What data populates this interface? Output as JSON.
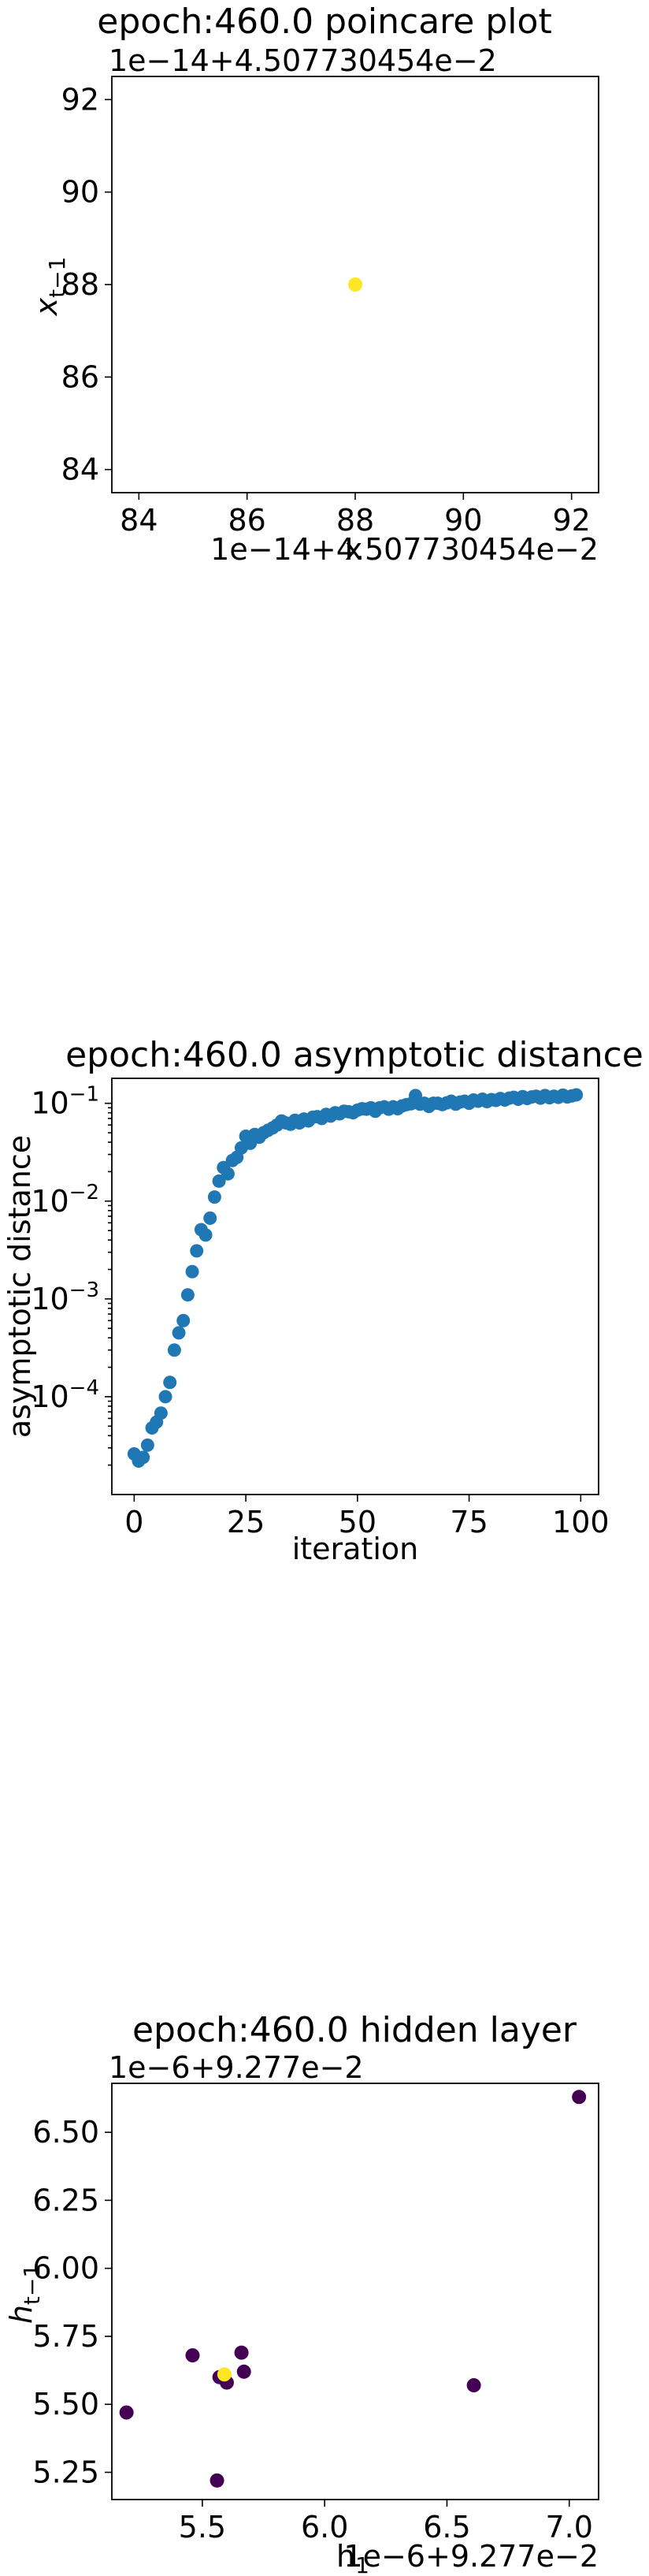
{
  "chart_data": [
    {
      "type": "scatter",
      "title": "epoch:460.0 poincare plot",
      "xlabel": "x",
      "ylabel": "x_{t-1}",
      "x_offset_label": "1e−14+4.507730454e−2",
      "y_offset_label": "1e−14+4.507730454e−2",
      "xlim": [
        83.5,
        92.5
      ],
      "ylim": [
        83.5,
        92.5
      ],
      "xticks": [
        "84",
        "86",
        "88",
        "90",
        "92"
      ],
      "yticks": [
        "84",
        "86",
        "88",
        "90",
        "92"
      ],
      "points": [
        {
          "x": 88.0,
          "y": 88.0,
          "color": "#fde725"
        }
      ]
    },
    {
      "type": "scatter",
      "title": "epoch:460.0 asymptotic distance",
      "xlabel": "iteration",
      "ylabel": "asymptotic distance",
      "yscale": "log",
      "xlim": [
        -5,
        104
      ],
      "ylim": [
        1e-05,
        0.18
      ],
      "xticks": [
        "0",
        "25",
        "50",
        "75",
        "100"
      ],
      "yticks": [
        "10^{-1}",
        "10^{-2}",
        "10^{-3}",
        "10^{-4}"
      ],
      "color": "#1f77b4",
      "x": [
        0,
        1,
        2,
        3,
        4,
        5,
        6,
        7,
        8,
        9,
        10,
        11,
        12,
        13,
        14,
        15,
        16,
        17,
        18,
        19,
        20,
        21,
        22,
        23,
        24,
        25,
        26,
        27,
        28,
        29,
        30,
        31,
        32,
        33,
        34,
        35,
        36,
        37,
        38,
        39,
        40,
        41,
        42,
        43,
        44,
        45,
        46,
        47,
        48,
        49,
        50,
        51,
        52,
        53,
        54,
        55,
        56,
        57,
        58,
        59,
        60,
        61,
        62,
        63,
        64,
        65,
        66,
        67,
        68,
        69,
        70,
        71,
        72,
        73,
        74,
        75,
        76,
        77,
        78,
        79,
        80,
        81,
        82,
        83,
        84,
        85,
        86,
        87,
        88,
        89,
        90,
        91,
        92,
        93,
        94,
        95,
        96,
        97,
        98,
        99
      ],
      "y": [
        2.6e-05,
        2.2e-05,
        2.4e-05,
        3.2e-05,
        4.8e-05,
        5.5e-05,
        6.8e-05,
        0.0001,
        0.00014,
        0.0003,
        0.00045,
        0.0006,
        0.0011,
        0.0019,
        0.0031,
        0.0051,
        0.0045,
        0.0067,
        0.011,
        0.016,
        0.022,
        0.019,
        0.026,
        0.028,
        0.035,
        0.046,
        0.039,
        0.048,
        0.045,
        0.05,
        0.053,
        0.056,
        0.06,
        0.066,
        0.063,
        0.061,
        0.067,
        0.063,
        0.069,
        0.066,
        0.072,
        0.073,
        0.07,
        0.077,
        0.074,
        0.08,
        0.078,
        0.083,
        0.082,
        0.08,
        0.085,
        0.088,
        0.087,
        0.09,
        0.083,
        0.09,
        0.092,
        0.087,
        0.092,
        0.088,
        0.094,
        0.097,
        0.099,
        0.12,
        0.098,
        0.1,
        0.093,
        0.1,
        0.1,
        0.097,
        0.101,
        0.105,
        0.098,
        0.103,
        0.105,
        0.1,
        0.108,
        0.105,
        0.11,
        0.104,
        0.109,
        0.107,
        0.112,
        0.108,
        0.113,
        0.115,
        0.11,
        0.117,
        0.112,
        0.116,
        0.118,
        0.113,
        0.12,
        0.114,
        0.118,
        0.115,
        0.121,
        0.116,
        0.119,
        0.122
      ]
    },
    {
      "type": "scatter",
      "title": "epoch:460.0 hidden layer",
      "xlabel": "h_1",
      "ylabel": "h_{t-1}",
      "x_offset_label": "1e−6+9.277e−2",
      "y_offset_label": "1e−6+9.277e−2",
      "xlim": [
        5.13,
        7.12
      ],
      "ylim": [
        5.15,
        6.68
      ],
      "xticks": [
        "5.5",
        "6.0",
        "6.5",
        "7.0"
      ],
      "yticks": [
        "5.25",
        "5.50",
        "5.75",
        "6.00",
        "6.25",
        "6.50"
      ],
      "points": [
        {
          "x": 7.04,
          "y": 6.63,
          "color": "#440154"
        },
        {
          "x": 5.19,
          "y": 5.47,
          "color": "#440154"
        },
        {
          "x": 5.46,
          "y": 5.68,
          "color": "#440154"
        },
        {
          "x": 5.56,
          "y": 5.22,
          "color": "#440154"
        },
        {
          "x": 5.57,
          "y": 5.6,
          "color": "#440154"
        },
        {
          "x": 5.6,
          "y": 5.58,
          "color": "#440154"
        },
        {
          "x": 5.66,
          "y": 5.69,
          "color": "#440154"
        },
        {
          "x": 5.67,
          "y": 5.62,
          "color": "#440154"
        },
        {
          "x": 6.61,
          "y": 5.57,
          "color": "#440154"
        },
        {
          "x": 5.59,
          "y": 5.61,
          "color": "#fde725"
        }
      ]
    }
  ]
}
